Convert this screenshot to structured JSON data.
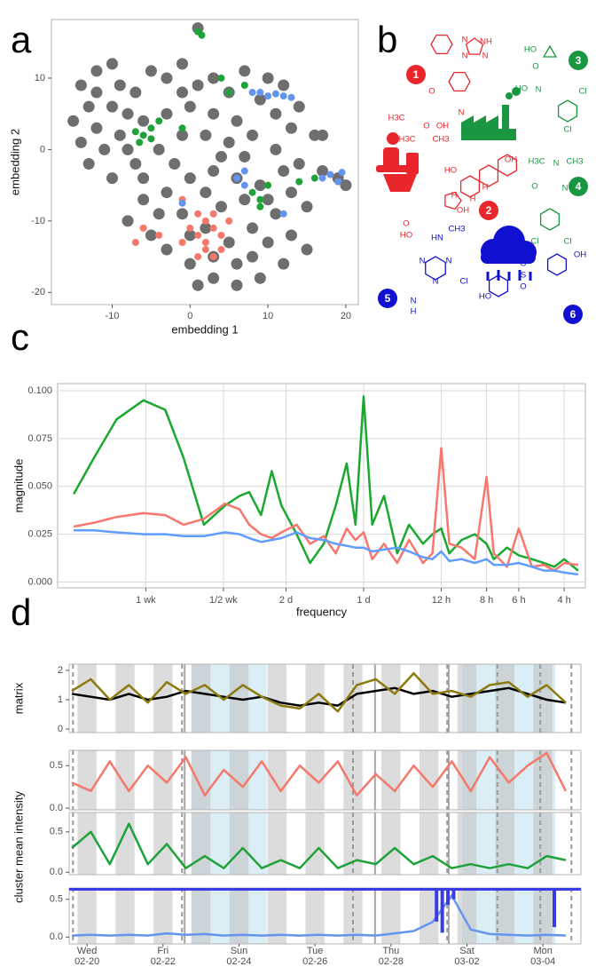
{
  "chart_data": [
    {
      "type": "scatter",
      "label": "a",
      "xlabel": "embedding 1",
      "ylabel": "embedding 2",
      "xlim": [
        -17.8,
        21.6
      ],
      "ylim": [
        -21.7,
        18.2
      ],
      "xticks": [
        -10,
        0,
        10,
        20
      ],
      "yticks": [
        -20,
        -10,
        0,
        10
      ],
      "series": [
        {
          "color": "#6e6e6e",
          "x": [
            -14,
            -12,
            -10,
            -9,
            -13,
            -15,
            -14,
            -12,
            -10,
            -7,
            -5,
            -3,
            -1,
            1,
            3,
            5,
            7,
            10,
            12,
            14,
            16,
            13,
            11,
            9,
            6,
            3,
            0,
            -3,
            -6,
            -9,
            -11,
            -13,
            -10,
            -7,
            -4,
            -1,
            2,
            5,
            8,
            11,
            14,
            17,
            19,
            20,
            17,
            12,
            9,
            6,
            3,
            0,
            -3,
            -6,
            -8,
            -5,
            -3,
            0,
            3,
            6,
            9,
            12,
            13,
            11,
            8,
            5,
            2,
            -1,
            4,
            7,
            10,
            3,
            6,
            0,
            -4,
            1,
            15,
            13,
            -8,
            -12,
            -8,
            -2,
            4,
            7,
            10,
            1,
            8,
            -6,
            15,
            -1,
            2
          ],
          "y": [
            9,
            11,
            12,
            9,
            6,
            4,
            1,
            3,
            6,
            8,
            11,
            10,
            12,
            9,
            10,
            8,
            11,
            10,
            9,
            6,
            2,
            3,
            5,
            7,
            4,
            5,
            6,
            5,
            4,
            2,
            0,
            -2,
            -4,
            -2,
            0,
            2,
            2,
            1,
            2,
            0,
            -2,
            -3,
            -4,
            -5,
            2,
            -3,
            -5,
            -4,
            -3,
            -4,
            -6,
            -7,
            -10,
            -12,
            -14,
            -16,
            -18,
            -19,
            -18,
            -16,
            -12,
            -9,
            -11,
            -13,
            -11,
            -9,
            -8,
            -7,
            -13,
            -15,
            -16,
            -12,
            -9,
            17,
            -8,
            -6,
            5,
            8,
            0,
            -2,
            -1,
            -1,
            -7,
            -19,
            -15,
            -4,
            -14,
            8,
            -6
          ]
        },
        {
          "color": "#f4786b",
          "x": [
            1,
            2,
            3,
            1,
            2,
            4,
            3,
            0,
            2,
            4,
            3,
            5,
            -6,
            -7,
            -4,
            -1,
            -1,
            1
          ],
          "y": [
            -9,
            -10,
            -11,
            -12,
            -13,
            -12,
            -9,
            -11,
            -14,
            -14,
            -15,
            -10,
            -11,
            -13,
            -12,
            -7,
            -13,
            -15
          ]
        },
        {
          "color": "#1fa23a",
          "x": [
            1,
            1.5,
            -6,
            -7,
            -5,
            -6.5,
            -5,
            -4,
            5,
            4,
            7,
            -1,
            8,
            9,
            10,
            9,
            16,
            14
          ],
          "y": [
            16.5,
            16,
            2,
            2.5,
            1.5,
            1,
            3,
            4,
            8,
            10,
            9,
            3,
            -6,
            -7,
            -5,
            -8,
            -4,
            -4.5
          ]
        },
        {
          "color": "#6495ed",
          "x": [
            8,
            9,
            10,
            11,
            12,
            13,
            7,
            6,
            7,
            -1,
            17,
            18,
            19,
            19.5,
            12
          ],
          "y": [
            8,
            8,
            7.5,
            7.8,
            7.5,
            7.3,
            -3,
            -4,
            -5,
            -7.5,
            -4,
            -3.5,
            -4.5,
            -3.2,
            -9
          ]
        }
      ]
    },
    {
      "type": "line",
      "label": "c",
      "xlabel": "frequency",
      "ylabel": "magnitude",
      "log_x": true,
      "grid": true,
      "xlim": [
        0.065,
        7.25
      ],
      "ylim": [
        -0.003,
        0.1037
      ],
      "xticks": [
        {
          "value": 0.142857,
          "label": "1 wk"
        },
        {
          "value": 0.285714,
          "label": "1/2 wk"
        },
        {
          "value": 0.5,
          "label": "2 d"
        },
        {
          "value": 1,
          "label": "1 d"
        },
        {
          "value": 2,
          "label": "12 h"
        },
        {
          "value": 3,
          "label": "8 h"
        },
        {
          "value": 4,
          "label": "6 h"
        },
        {
          "value": 6,
          "label": "4 h"
        }
      ],
      "yticks": [
        {
          "value": 0,
          "label": "0.000"
        },
        {
          "value": 0.025,
          "label": "0.025"
        },
        {
          "value": 0.05,
          "label": "0.050"
        },
        {
          "value": 0.075,
          "label": "0.075"
        },
        {
          "value": 0.1,
          "label": "0.100"
        }
      ],
      "x": [
        0.075,
        0.09,
        0.11,
        0.14,
        0.17,
        0.2,
        0.24,
        0.29,
        0.33,
        0.36,
        0.4,
        0.44,
        0.48,
        0.55,
        0.62,
        0.7,
        0.78,
        0.86,
        0.93,
        1.0,
        1.08,
        1.2,
        1.35,
        1.5,
        1.7,
        1.85,
        2.0,
        2.15,
        2.4,
        2.7,
        3.0,
        3.2,
        3.6,
        4.0,
        4.5,
        5.0,
        5.5,
        6.0,
        6.8
      ],
      "series": [
        {
          "color": "#1aa82f",
          "values": [
            0.046,
            0.065,
            0.085,
            0.095,
            0.09,
            0.065,
            0.03,
            0.04,
            0.045,
            0.047,
            0.035,
            0.058,
            0.04,
            0.025,
            0.01,
            0.02,
            0.04,
            0.062,
            0.03,
            0.097,
            0.03,
            0.045,
            0.015,
            0.03,
            0.02,
            0.025,
            0.028,
            0.015,
            0.022,
            0.025,
            0.02,
            0.012,
            0.018,
            0.014,
            0.012,
            0.01,
            0.008,
            0.012,
            0.006
          ]
        },
        {
          "color": "#f8766d",
          "values": [
            0.029,
            0.031,
            0.034,
            0.036,
            0.035,
            0.03,
            0.033,
            0.041,
            0.038,
            0.03,
            0.025,
            0.023,
            0.026,
            0.03,
            0.02,
            0.024,
            0.015,
            0.028,
            0.022,
            0.026,
            0.012,
            0.02,
            0.01,
            0.022,
            0.01,
            0.015,
            0.07,
            0.02,
            0.018,
            0.012,
            0.055,
            0.015,
            0.008,
            0.028,
            0.008,
            0.009,
            0.006,
            0.01,
            0.009
          ]
        },
        {
          "color": "#619cff",
          "values": [
            0.027,
            0.027,
            0.026,
            0.025,
            0.025,
            0.024,
            0.024,
            0.026,
            0.025,
            0.023,
            0.021,
            0.022,
            0.023,
            0.026,
            0.023,
            0.022,
            0.02,
            0.019,
            0.018,
            0.018,
            0.016,
            0.017,
            0.018,
            0.016,
            0.013,
            0.012,
            0.016,
            0.011,
            0.012,
            0.01,
            0.012,
            0.009,
            0.009,
            0.01,
            0.008,
            0.006,
            0.006,
            0.005,
            0.004
          ]
        }
      ]
    },
    {
      "type": "panels",
      "label": "d",
      "ylabel": "cluster mean intensity",
      "xlim": [
        -0.47,
        13.0
      ],
      "xticks": [
        {
          "value": 0,
          "label": "Wed",
          "date": "02-20"
        },
        {
          "value": 2,
          "label": "Fri",
          "date": "02-22"
        },
        {
          "value": 4,
          "label": "Sun",
          "date": "02-24"
        },
        {
          "value": 6,
          "label": "Tue",
          "date": "02-26"
        },
        {
          "value": 8,
          "label": "Thu",
          "date": "02-28"
        },
        {
          "value": 10,
          "label": "Sat",
          "date": "03-02"
        },
        {
          "value": 12,
          "label": "Mon",
          "date": "03-04"
        }
      ],
      "x": [
        -0.4,
        0.1,
        0.6,
        1.1,
        1.6,
        2.1,
        2.6,
        3.1,
        3.6,
        4.1,
        4.6,
        5.1,
        5.6,
        6.1,
        6.6,
        7.1,
        7.6,
        8.1,
        8.6,
        9.1,
        9.6,
        10.1,
        10.6,
        11.1,
        11.6,
        12.1,
        12.6
      ],
      "weekend_spans": [
        [
          2.74,
          4.73
        ],
        [
          9.87,
          12.33
        ]
      ],
      "night_spans": [
        [
          -0.25,
          0.25
        ],
        [
          0.75,
          1.25
        ],
        [
          1.75,
          2.25
        ],
        [
          2.75,
          3.25
        ],
        [
          3.75,
          4.25
        ],
        [
          4.75,
          5.25
        ],
        [
          5.75,
          6.25
        ],
        [
          6.75,
          7.25
        ],
        [
          7.75,
          8.25
        ],
        [
          8.75,
          9.25
        ],
        [
          9.75,
          10.25
        ],
        [
          10.75,
          11.25
        ],
        [
          11.75,
          12.25
        ]
      ],
      "dashed_lines": [
        -0.37,
        2.5,
        7.0,
        9.48,
        10.8,
        11.93,
        12.75
      ],
      "solid_lines": [
        2.57,
        7.58,
        9.52
      ],
      "panels": [
        {
          "ylabel": "matrix",
          "ylim": [
            -0.12,
            2.21
          ],
          "yticks": [
            0,
            1,
            2
          ],
          "series": [
            {
              "color": "#000000",
              "values": [
                1.2,
                1.1,
                1.0,
                1.2,
                1.0,
                1.1,
                1.3,
                1.2,
                1.1,
                1.0,
                1.1,
                0.9,
                0.8,
                0.9,
                0.8,
                1.2,
                1.3,
                1.4,
                1.2,
                1.3,
                1.1,
                1.2,
                1.3,
                1.4,
                1.2,
                1.0,
                0.9
              ]
            },
            {
              "color": "#8c7a10",
              "values": [
                1.3,
                1.7,
                1.0,
                1.5,
                0.9,
                1.6,
                1.2,
                1.5,
                1.0,
                1.5,
                1.1,
                0.8,
                0.7,
                1.2,
                0.6,
                1.5,
                1.7,
                1.2,
                1.9,
                1.2,
                1.3,
                1.1,
                1.5,
                1.6,
                1.1,
                1.5,
                0.9
              ]
            }
          ]
        },
        {
          "ylim": [
            -0.02,
            0.68
          ],
          "yticks": [
            {
              "value": 0,
              "label": "0.0"
            },
            {
              "value": 0.5,
              "label": "0.5"
            }
          ],
          "series": [
            {
              "color": "#f4786b",
              "values": [
                0.3,
                0.2,
                0.55,
                0.2,
                0.5,
                0.3,
                0.6,
                0.15,
                0.45,
                0.25,
                0.55,
                0.2,
                0.5,
                0.3,
                0.55,
                0.15,
                0.4,
                0.2,
                0.5,
                0.25,
                0.55,
                0.2,
                0.6,
                0.3,
                0.5,
                0.65,
                0.2
              ]
            }
          ]
        },
        {
          "ylim": [
            -0.03,
            0.74
          ],
          "yticks": [
            {
              "value": 0,
              "label": "0.0"
            },
            {
              "value": 0.5,
              "label": "0.5"
            }
          ],
          "series": [
            {
              "color": "#1fa23a",
              "values": [
                0.3,
                0.5,
                0.1,
                0.6,
                0.1,
                0.35,
                0.05,
                0.2,
                0.05,
                0.3,
                0.05,
                0.15,
                0.05,
                0.3,
                0.05,
                0.15,
                0.1,
                0.3,
                0.1,
                0.2,
                0.05,
                0.1,
                0.05,
                0.1,
                0.05,
                0.2,
                0.15
              ]
            }
          ]
        },
        {
          "ylim": [
            -0.09,
            0.65
          ],
          "yticks": [
            {
              "value": 0,
              "label": "0.0"
            },
            {
              "value": 0.5,
              "label": "0.5"
            }
          ],
          "series": [
            {
              "color": "#6495ed",
              "values": [
                0.02,
                0.03,
                0.02,
                0.03,
                0.02,
                0.05,
                0.03,
                0.04,
                0.02,
                0.03,
                0.02,
                0.03,
                0.02,
                0.03,
                0.02,
                0.03,
                0.02,
                0.05,
                0.08,
                0.2,
                0.55,
                0.1,
                0.04,
                0.03,
                0.02,
                0.03,
                0.02
              ]
            }
          ],
          "rain": {
            "color": "#3b3be6",
            "x": [
              9.2,
              9.35,
              9.5,
              9.65,
              12.3
            ],
            "values": [
              0.6,
              0.8,
              0.3,
              0.2,
              0.7
            ],
            "ylim": [
              0,
              1
            ]
          }
        }
      ]
    }
  ],
  "panel_b": {
    "label": "b",
    "molecules": [
      {
        "number": "1",
        "color": "#e8262b",
        "atoms": [
          "N",
          "NH",
          "N",
          "N",
          "N",
          "O",
          "O",
          "OH",
          "H3C",
          "CH3",
          "H3C"
        ]
      },
      {
        "number": "2",
        "color": "#e8262b",
        "atoms": [
          "OH",
          "HO",
          "H",
          "OH",
          "H",
          "H",
          "HO",
          "O"
        ]
      },
      {
        "number": "3",
        "color": "#1a9641",
        "atoms": [
          "HO",
          "O",
          "HO",
          "N",
          "Cl",
          "Cl"
        ]
      },
      {
        "number": "4",
        "color": "#1a9641",
        "atoms": [
          "H3C",
          "N",
          "CH3",
          "O",
          "N",
          "Cl",
          "Cl"
        ]
      },
      {
        "number": "5",
        "color": "#1010d0",
        "atoms": [
          "CH3",
          "HN",
          "N",
          "N",
          "N",
          "Cl",
          "N",
          "H"
        ]
      },
      {
        "number": "6",
        "color": "#1010d0",
        "atoms": [
          "OH",
          "S",
          "O",
          "O",
          "HO"
        ]
      }
    ]
  }
}
